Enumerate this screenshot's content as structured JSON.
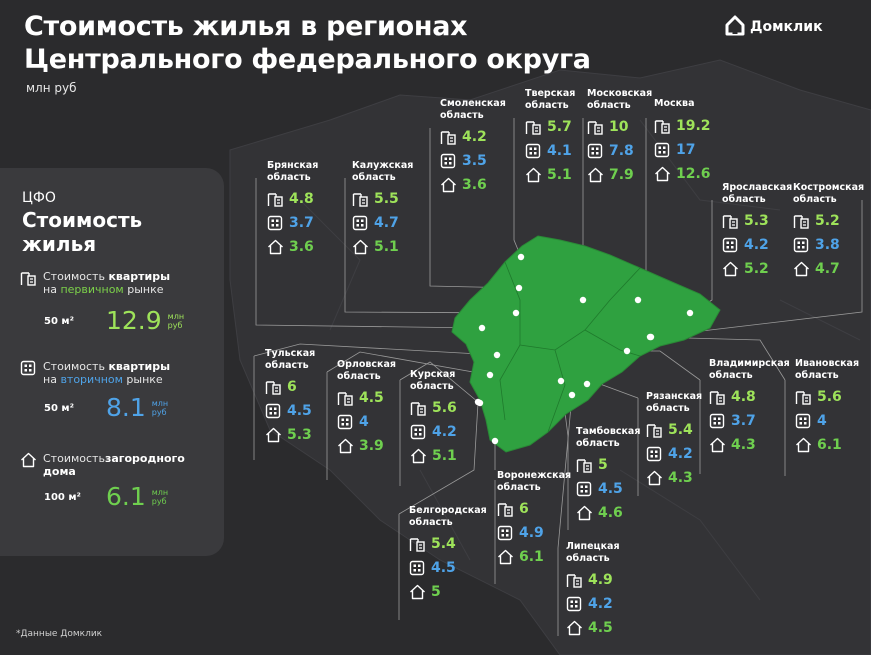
{
  "title_line1": "Стоимость жилья в регионах",
  "title_line2": "Центрального федерального округа",
  "unit": "млн руб",
  "brand": "Домклик",
  "footnote": "*Данные Домклик",
  "colors": {
    "background": "#2b2b2d",
    "panel": "#3a3a3d",
    "map_fill": "#2fa140",
    "primary_value": "#9ee35a",
    "secondary_value": "#4fa3e8",
    "house_value": "#6fcf4f"
  },
  "icons": {
    "primary": "new-building-crane-icon",
    "secondary": "apartment-building-icon",
    "house": "country-house-icon",
    "brand": "domclick-logo-icon"
  },
  "summary": {
    "kicker": "ЦФО",
    "heading": "Стоимость жилья",
    "items": [
      {
        "label_pre": "Стоимость ",
        "label_bold": "квартиры",
        "label_mid": "на ",
        "label_accent": "первичном",
        "label_post": " рынке",
        "area": "50 м²",
        "value": "12.9",
        "unit": "млн руб"
      },
      {
        "label_pre": "Стоимость ",
        "label_bold": "квартиры",
        "label_mid": "на ",
        "label_accent": "вторичном",
        "label_post": " рынке",
        "area": "50 м²",
        "value": "8.1",
        "unit": "млн руб"
      },
      {
        "label_pre": "Стоимость",
        "label_bold": "загородного дома",
        "label_mid": "",
        "label_accent": "",
        "label_post": "",
        "area": "100 м²",
        "value": "6.1",
        "unit": "млн руб"
      }
    ]
  },
  "regions": [
    {
      "name": "Брянская область",
      "primary": "4.8",
      "secondary": "3.7",
      "house": "3.6"
    },
    {
      "name": "Калужская область",
      "primary": "5.5",
      "secondary": "4.7",
      "house": "5.1"
    },
    {
      "name": "Смоленская область",
      "primary": "4.2",
      "secondary": "3.5",
      "house": "3.6"
    },
    {
      "name": "Тверская область",
      "primary": "5.7",
      "secondary": "4.1",
      "house": "5.1"
    },
    {
      "name": "Московская область",
      "primary": "10",
      "secondary": "7.8",
      "house": "7.9"
    },
    {
      "name": "Москва",
      "primary": "19.2",
      "secondary": "17",
      "house": "12.6"
    },
    {
      "name": "Ярославская область",
      "primary": "5.3",
      "secondary": "4.2",
      "house": "5.2"
    },
    {
      "name": "Костромская область",
      "primary": "5.2",
      "secondary": "3.8",
      "house": "4.7"
    },
    {
      "name": "Тульская область",
      "primary": "6",
      "secondary": "4.5",
      "house": "5.3"
    },
    {
      "name": "Орловская область",
      "primary": "4.5",
      "secondary": "4",
      "house": "3.9"
    },
    {
      "name": "Курская область",
      "primary": "5.6",
      "secondary": "4.2",
      "house": "5.1"
    },
    {
      "name": "Рязанская область",
      "primary": "5.4",
      "secondary": "4.2",
      "house": "4.3"
    },
    {
      "name": "Владимирская область",
      "primary": "4.8",
      "secondary": "3.7",
      "house": "4.3"
    },
    {
      "name": "Ивановская область",
      "primary": "5.6",
      "secondary": "4",
      "house": "6.1"
    },
    {
      "name": "Тамбовская область",
      "primary": "5",
      "secondary": "4.5",
      "house": "4.6"
    },
    {
      "name": "Воронежская область",
      "primary": "6",
      "secondary": "4.9",
      "house": "6.1"
    },
    {
      "name": "Белгородская область",
      "primary": "5.4",
      "secondary": "4.5",
      "house": "5"
    },
    {
      "name": "Липецкая область",
      "primary": "4.9",
      "secondary": "4.2",
      "house": "4.5"
    }
  ]
}
